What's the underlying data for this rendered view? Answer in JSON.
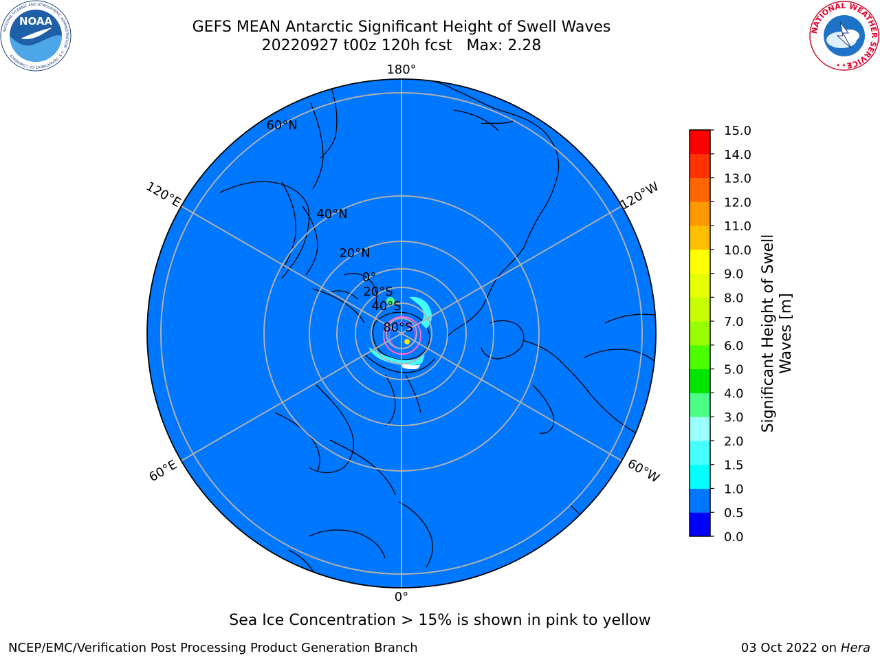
{
  "title": {
    "line1": "GEFS MEAN Antarctic Significant Height of Swell Waves",
    "line2": "20220927 t00z 120h fcst   Max: 2.28"
  },
  "map": {
    "projection": "south-polar-stereographic",
    "ocean_color": "#0077ff",
    "longitude_labels": [
      "180°",
      "120°W",
      "60°W",
      "0°",
      "60°E",
      "120°E"
    ],
    "latitude_labels": [
      "60°N",
      "40°N",
      "20°N",
      "0°",
      "20°S",
      "40°S",
      "80°S"
    ]
  },
  "colorbar": {
    "label": "Significant Height of Swell Waves [m]",
    "label_line1": "Significant Height of Swell",
    "label_line2": "Waves [m]",
    "ticks": [
      "0.0",
      "0.5",
      "1.0",
      "1.5",
      "2.0",
      "3.0",
      "4.0",
      "5.0",
      "6.0",
      "7.0",
      "8.0",
      "9.0",
      "10.0",
      "11.0",
      "12.0",
      "13.0",
      "14.0",
      "15.0"
    ],
    "colors": [
      "#0000ff",
      "#0077ff",
      "#00ffff",
      "#45ffff",
      "#99ffff",
      "#4cff85",
      "#00e600",
      "#4cff00",
      "#99ff00",
      "#c8ff00",
      "#e6ff00",
      "#ffff00",
      "#ffbf00",
      "#ff9900",
      "#ff6600",
      "#ff3300",
      "#ff0000"
    ]
  },
  "note": "Sea Ice Concentration > 15% is shown in pink to yellow",
  "footer": {
    "left": "NCEP/EMC/Verification Post Processing Product Generation Branch",
    "right_prefix": "03 Oct 2022 on ",
    "right_machine": "Hera"
  },
  "logos": {
    "noaa_text": "NOAA",
    "noaa_ring": "NATIONAL OCEANIC AND ATMOSPHERIC ADMINISTRATION · U.S. DEPARTMENT OF COMMERCE",
    "nws_ring": "NATIONAL WEATHER SERVICE"
  }
}
